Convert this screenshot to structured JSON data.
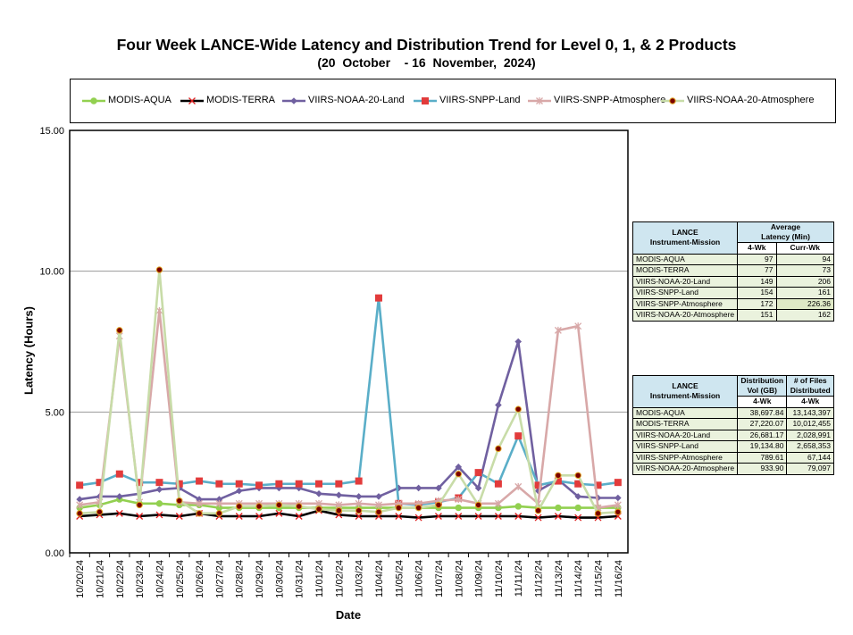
{
  "title": "Four Week LANCE-Wide Latency and Distribution Trend for Level 0, 1, & 2 Products",
  "subtitle": "(20  October    - 16  November,  2024)",
  "colors": {
    "modis_aqua": "#92d050",
    "modis_terra": "#000000",
    "viirs_noaa20_land": "#7060a0",
    "viirs_snpp_land": "#5aaec8",
    "viirs_snpp_atm": "#d8a8a8",
    "viirs_noaa20_atm": "#c8dca8"
  },
  "chart_data": {
    "type": "line",
    "ylabel": "Latency (Hours)",
    "xlabel": "Date",
    "ylim": [
      0,
      15
    ],
    "yticks": [
      "0.00",
      "5.00",
      "10.00",
      "15.00"
    ],
    "grid": "horizontal",
    "legend_position": "top",
    "x": [
      "10/20/24",
      "10/21/24",
      "10/22/24",
      "10/23/24",
      "10/24/24",
      "10/25/24",
      "10/26/24",
      "10/27/24",
      "10/28/24",
      "10/29/24",
      "10/30/24",
      "10/31/24",
      "11/01/24",
      "11/02/24",
      "11/03/24",
      "11/04/24",
      "11/05/24",
      "11/06/24",
      "11/07/24",
      "11/08/24",
      "11/09/24",
      "11/10/24",
      "11/11/24",
      "11/12/24",
      "11/13/24",
      "11/14/24",
      "11/15/24",
      "11/16/24"
    ],
    "series": [
      {
        "name": "MODIS-AQUA",
        "marker": "circle",
        "color_key": "modis_aqua",
        "values": [
          1.6,
          1.7,
          1.9,
          1.75,
          1.75,
          1.7,
          1.7,
          1.6,
          1.6,
          1.6,
          1.6,
          1.6,
          1.6,
          1.6,
          1.6,
          1.6,
          1.6,
          1.6,
          1.6,
          1.6,
          1.6,
          1.6,
          1.65,
          1.6,
          1.6,
          1.6,
          1.6,
          1.6
        ]
      },
      {
        "name": "MODIS-TERRA",
        "marker": "x",
        "color_key": "modis_terra",
        "values": [
          1.3,
          1.35,
          1.4,
          1.3,
          1.35,
          1.3,
          1.4,
          1.3,
          1.3,
          1.3,
          1.4,
          1.3,
          1.5,
          1.35,
          1.3,
          1.3,
          1.3,
          1.25,
          1.3,
          1.3,
          1.3,
          1.3,
          1.3,
          1.25,
          1.3,
          1.25,
          1.25,
          1.3
        ]
      },
      {
        "name": "VIIRS-NOAA-20-Land",
        "marker": "diamond",
        "color_key": "viirs_noaa20_land",
        "values": [
          1.9,
          2.0,
          2.0,
          2.1,
          2.25,
          2.3,
          1.9,
          1.9,
          2.2,
          2.3,
          2.3,
          2.3,
          2.1,
          2.05,
          2.0,
          2.0,
          2.3,
          2.3,
          2.3,
          3.05,
          2.3,
          5.25,
          7.5,
          2.2,
          2.6,
          2.0,
          1.95,
          1.95
        ]
      },
      {
        "name": "VIIRS-SNPP-Land",
        "marker": "square",
        "color_key": "viirs_snpp_land",
        "values": [
          2.4,
          2.5,
          2.8,
          2.5,
          2.5,
          2.45,
          2.55,
          2.45,
          2.45,
          2.4,
          2.45,
          2.45,
          2.45,
          2.45,
          2.55,
          9.05,
          1.75,
          1.7,
          1.8,
          1.95,
          2.85,
          2.45,
          4.15,
          2.4,
          2.55,
          2.45,
          2.4,
          2.5
        ]
      },
      {
        "name": "VIIRS-SNPP-Atmosphere",
        "marker": "star",
        "color_key": "viirs_snpp_atm",
        "values": [
          1.7,
          1.8,
          7.7,
          1.8,
          8.6,
          1.8,
          1.75,
          1.75,
          1.75,
          1.75,
          1.75,
          1.75,
          1.75,
          1.7,
          1.75,
          1.7,
          1.75,
          1.75,
          1.85,
          1.9,
          1.75,
          1.75,
          2.35,
          1.75,
          7.9,
          8.05,
          1.6,
          1.7
        ]
      },
      {
        "name": "VIIRS-NOAA-20-Atmosphere",
        "marker": "dot",
        "color_key": "viirs_noaa20_atm",
        "values": [
          1.4,
          1.45,
          7.9,
          1.7,
          10.05,
          1.85,
          1.4,
          1.4,
          1.65,
          1.65,
          1.7,
          1.65,
          1.55,
          1.5,
          1.5,
          1.45,
          1.6,
          1.6,
          1.7,
          2.8,
          1.7,
          3.7,
          5.1,
          1.5,
          2.75,
          2.75,
          1.4,
          1.45
        ]
      }
    ]
  },
  "latency_table": {
    "header_col1": [
      "LANCE",
      "Instrument-Mission"
    ],
    "header_col2": [
      "Average",
      "Latency (Min)"
    ],
    "sub_headers": [
      "4-Wk",
      "Curr-Wk"
    ],
    "rows": [
      {
        "name": "MODIS-AQUA",
        "wk4": "97",
        "curr": "94"
      },
      {
        "name": "MODIS-TERRA",
        "wk4": "77",
        "curr": "73"
      },
      {
        "name": "VIIRS-NOAA-20-Land",
        "wk4": "149",
        "curr": "206"
      },
      {
        "name": "VIIRS-SNPP-Land",
        "wk4": "154",
        "curr": "161"
      },
      {
        "name": "VIIRS-SNPP-Atmosphere",
        "wk4": "172",
        "curr": "226.36"
      },
      {
        "name": "VIIRS-NOAA-20-Atmosphere",
        "wk4": "151",
        "curr": "162"
      }
    ]
  },
  "distribution_table": {
    "header_col1": [
      "LANCE",
      "Instrument-Mission"
    ],
    "header_col2": [
      "Distribution",
      "Vol (GB)"
    ],
    "header_col3": [
      "# of Files",
      "Distributed"
    ],
    "sub_headers": [
      "4-Wk",
      "4-Wk"
    ],
    "rows": [
      {
        "name": "MODIS-AQUA",
        "vol": "38,697.84",
        "files": "13,143,397"
      },
      {
        "name": "MODIS-TERRA",
        "vol": "27,220.07",
        "files": "10,012,455"
      },
      {
        "name": "VIIRS-NOAA-20-Land",
        "vol": "26,681.17",
        "files": "2,028,991"
      },
      {
        "name": "VIIRS-SNPP-Land",
        "vol": "19,134.80",
        "files": "2,658,353"
      },
      {
        "name": "VIIRS-SNPP-Atmosphere",
        "vol": "789.61",
        "files": "67,144"
      },
      {
        "name": "VIIRS-NOAA-20-Atmosphere",
        "vol": "933.90",
        "files": "79,097"
      }
    ]
  }
}
